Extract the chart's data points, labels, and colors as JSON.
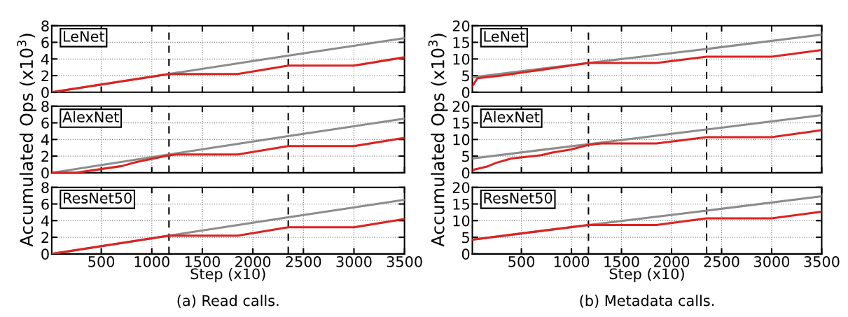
{
  "chart_data": [
    {
      "type": "line",
      "title": "LeNet",
      "xlim": [
        10,
        3500
      ],
      "xticks": [
        500,
        1000,
        1500,
        2000,
        2500,
        3000,
        3500
      ],
      "ylim": [
        0,
        8
      ],
      "yticks": [
        0,
        2,
        4,
        6,
        8
      ],
      "grid": true,
      "tick_labels": "y",
      "legend": false,
      "ref_lines": [
        {
          "axis": "x",
          "value": 1170,
          "color": "#000000",
          "line_style": "dashed"
        },
        {
          "axis": "x",
          "value": 2350,
          "color": "#000000",
          "line_style": "dashed"
        }
      ],
      "series": [
        {
          "color": "#8c8c8c",
          "x": [
            10,
            1170,
            2350,
            3500
          ],
          "values": [
            0,
            2.2,
            4.4,
            6.5
          ]
        },
        {
          "color": "#dd2222",
          "x": [
            10,
            1170,
            1850,
            2350,
            3000,
            3500
          ],
          "values": [
            0,
            2.2,
            2.2,
            3.2,
            3.2,
            4.2
          ]
        }
      ]
    },
    {
      "type": "line",
      "title": "AlexNet",
      "ylabel": "Accumulated Ops (x10$^{3}$)",
      "xlim": [
        10,
        3500
      ],
      "xticks": [
        500,
        1000,
        1500,
        2000,
        2500,
        3000,
        3500
      ],
      "ylim": [
        0,
        8
      ],
      "yticks": [
        0,
        2,
        4,
        6,
        8
      ],
      "grid": true,
      "tick_labels": "y",
      "legend": false,
      "ref_lines": [
        {
          "axis": "x",
          "value": 1170,
          "color": "#000000",
          "line_style": "dashed"
        },
        {
          "axis": "x",
          "value": 2350,
          "color": "#000000",
          "line_style": "dashed"
        }
      ],
      "series": [
        {
          "color": "#8c8c8c",
          "x": [
            10,
            1170,
            2350,
            3500
          ],
          "values": [
            0,
            2.2,
            4.4,
            6.5
          ]
        },
        {
          "color": "#dd2222",
          "x": [
            10,
            250,
            700,
            850,
            1170,
            1250,
            1850,
            2350,
            3000,
            3500
          ],
          "values": [
            0,
            0,
            0.8,
            1.3,
            2.1,
            2.2,
            2.2,
            3.2,
            3.2,
            4.2
          ]
        }
      ]
    },
    {
      "type": "line",
      "title": "ResNet50",
      "xlabel": "Step (x10)",
      "xlim": [
        10,
        3500
      ],
      "xticks": [
        500,
        1000,
        1500,
        2000,
        2500,
        3000,
        3500
      ],
      "ylim": [
        0,
        8
      ],
      "yticks": [
        0,
        2,
        4,
        6,
        8
      ],
      "grid": true,
      "legend": false,
      "annotations": [
        "(a) Read calls."
      ],
      "ref_lines": [
        {
          "axis": "x",
          "value": 1170,
          "color": "#000000",
          "line_style": "dashed"
        },
        {
          "axis": "x",
          "value": 2350,
          "color": "#000000",
          "line_style": "dashed"
        }
      ],
      "series": [
        {
          "color": "#8c8c8c",
          "x": [
            10,
            1170,
            2350,
            3500
          ],
          "values": [
            0,
            2.2,
            4.4,
            6.5
          ]
        },
        {
          "color": "#dd2222",
          "x": [
            10,
            1170,
            1850,
            2350,
            3000,
            3500
          ],
          "values": [
            0,
            2.2,
            2.2,
            3.2,
            3.2,
            4.2
          ]
        }
      ]
    },
    {
      "type": "line",
      "title": "LeNet",
      "xlim": [
        10,
        3500
      ],
      "xticks": [
        500,
        1000,
        1500,
        2000,
        2500,
        3000,
        3500
      ],
      "ylim": [
        0,
        20
      ],
      "yticks": [
        0,
        5,
        10,
        15,
        20
      ],
      "grid": true,
      "tick_labels": "y",
      "legend": false,
      "ref_lines": [
        {
          "axis": "x",
          "value": 1170,
          "color": "#000000",
          "line_style": "dashed"
        },
        {
          "axis": "x",
          "value": 2350,
          "color": "#000000",
          "line_style": "dashed"
        }
      ],
      "series": [
        {
          "color": "#8c8c8c",
          "x": [
            10,
            1170,
            2350,
            3500
          ],
          "values": [
            4.5,
            8.8,
            13,
            17.3
          ]
        },
        {
          "color": "#dd2222",
          "x": [
            10,
            60,
            300,
            1170,
            1850,
            2350,
            3000,
            3500
          ],
          "values": [
            1.8,
            4.2,
            5,
            8.8,
            8.8,
            10.7,
            10.7,
            12.7
          ]
        }
      ]
    },
    {
      "type": "line",
      "title": "AlexNet",
      "ylabel": "Accumulated Ops (x10$^{3}$)",
      "xlim": [
        10,
        3500
      ],
      "xticks": [
        500,
        1000,
        1500,
        2000,
        2500,
        3000,
        3500
      ],
      "ylim": [
        0,
        20
      ],
      "yticks": [
        0,
        5,
        10,
        15,
        20
      ],
      "grid": true,
      "tick_labels": "y",
      "legend": false,
      "ref_lines": [
        {
          "axis": "x",
          "value": 1170,
          "color": "#000000",
          "line_style": "dashed"
        },
        {
          "axis": "x",
          "value": 2350,
          "color": "#000000",
          "line_style": "dashed"
        }
      ],
      "series": [
        {
          "color": "#8c8c8c",
          "x": [
            10,
            1170,
            2350,
            3500
          ],
          "values": [
            4.3,
            8.6,
            13,
            17.3
          ]
        },
        {
          "color": "#dd2222",
          "x": [
            10,
            150,
            250,
            400,
            700,
            800,
            1000,
            1170,
            1300,
            1850,
            2350,
            3000,
            3500
          ],
          "values": [
            0.8,
            1.8,
            3,
            4.3,
            5.3,
            6,
            7,
            8.4,
            8.8,
            8.8,
            10.7,
            10.7,
            12.8
          ]
        }
      ]
    },
    {
      "type": "line",
      "title": "ResNet50",
      "xlabel": "Step (x10)",
      "xlim": [
        10,
        3500
      ],
      "xticks": [
        500,
        1000,
        1500,
        2000,
        2500,
        3000,
        3500
      ],
      "ylim": [
        0,
        20
      ],
      "yticks": [
        0,
        5,
        10,
        15,
        20
      ],
      "grid": true,
      "legend": false,
      "annotations": [
        "(b) Metadata calls."
      ],
      "ref_lines": [
        {
          "axis": "x",
          "value": 1170,
          "color": "#000000",
          "line_style": "dashed"
        },
        {
          "axis": "x",
          "value": 2350,
          "color": "#000000",
          "line_style": "dashed"
        }
      ],
      "series": [
        {
          "color": "#8c8c8c",
          "x": [
            10,
            1170,
            2350,
            3500
          ],
          "values": [
            4.3,
            8.7,
            13,
            17.3
          ]
        },
        {
          "color": "#dd2222",
          "x": [
            10,
            1170,
            1850,
            2350,
            3000,
            3500
          ],
          "values": [
            4.3,
            8.7,
            8.7,
            10.7,
            10.7,
            12.7
          ]
        }
      ]
    }
  ]
}
